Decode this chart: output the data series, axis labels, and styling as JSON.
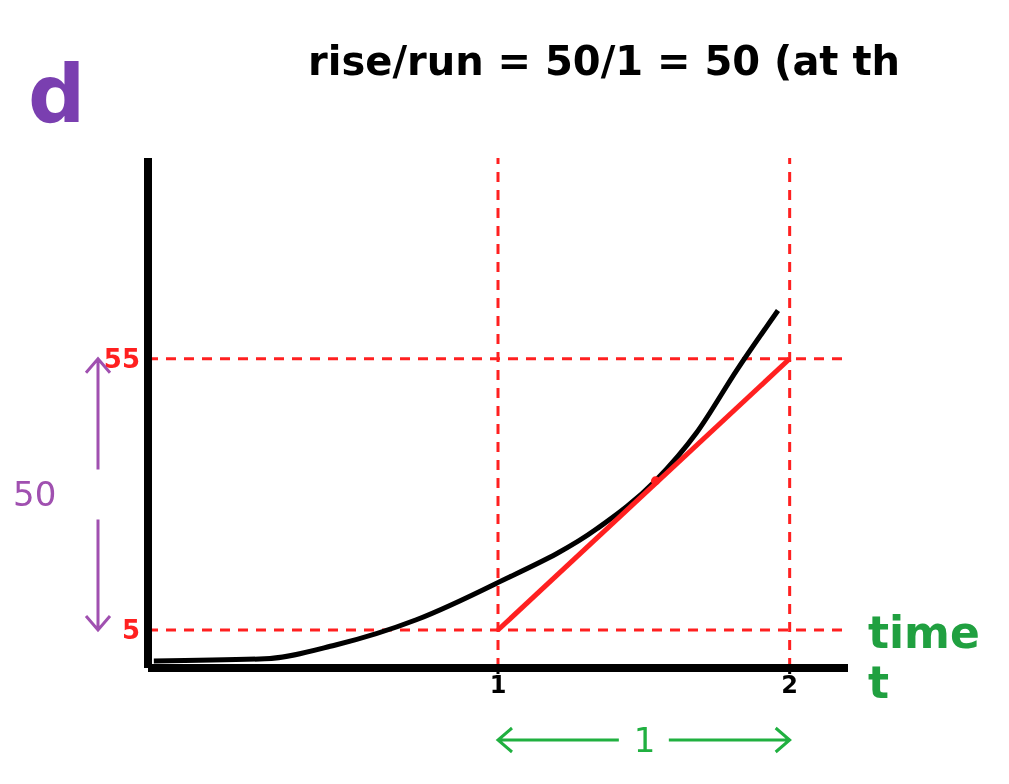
{
  "chart_data": {
    "type": "line",
    "ylabel": "d",
    "xlabel": "time t",
    "annotations": [
      "rise/run = 50/1 = 50 (at th",
      "50",
      "1"
    ],
    "series": [
      {
        "color": "#000000",
        "x": [
          -0.18,
          0.2,
          0.44,
          0.72,
          0.99,
          1.34,
          1.54,
          1.68,
          1.82,
          1.96
        ],
        "values": [
          -0.7,
          -0.3,
          2.2,
          6.9,
          13.5,
          23.7,
          32.5,
          41.3,
          53,
          63.9
        ]
      },
      {
        "color": "#ff2020",
        "x": [
          1,
          2
        ],
        "values": [
          5,
          55
        ]
      },
      {
        "type": "scatter",
        "marker": "circle",
        "color": "#ff2020",
        "x": [
          1.54
        ],
        "values": [
          32.5
        ]
      }
    ],
    "xlim": [
      -0.2,
      2.2
    ],
    "ylim": [
      -2,
      92
    ],
    "xticks": [
      1,
      2
    ],
    "yticks": [
      5,
      55
    ],
    "ref_lines": [
      {
        "axis": "y",
        "value": 5,
        "color": "#ff2020",
        "line_style": "dashed"
      },
      {
        "axis": "y",
        "value": 55,
        "color": "#ff2020",
        "line_style": "dashed"
      },
      {
        "axis": "x",
        "value": 1,
        "color": "#ff2020",
        "line_style": "dashed"
      },
      {
        "axis": "x",
        "value": 2,
        "color": "#ff2020",
        "line_style": "dashed"
      }
    ],
    "grid": false
  }
}
